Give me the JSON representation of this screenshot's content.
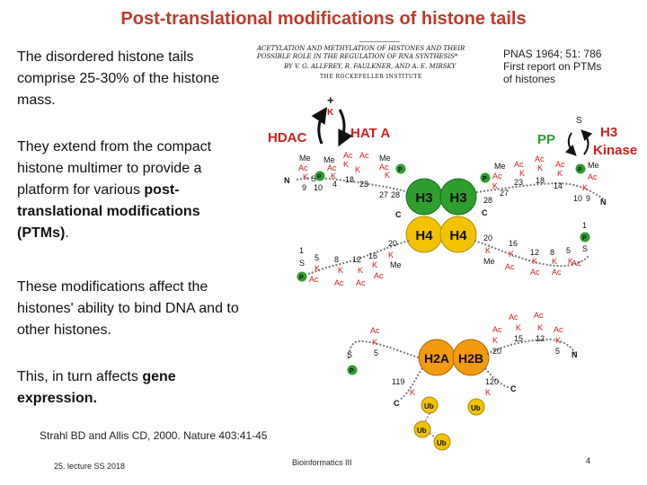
{
  "slide": {
    "title": "Post-translational modifications of histone tails",
    "paragraphs": {
      "p1": "The disordered histone tails comprise 25-30% of the histone mass.",
      "p2_a": "They extend from the compact histone multimer to provide a platform for various ",
      "p2_b": "post-translational modifications (PTMs)",
      "p2_c": ".",
      "p3": "These modifications affect the histones' ability to bind DNA and to other histones.",
      "p4_a": "This, in turn affects ",
      "p4_b": "gene expression."
    },
    "reference_note": {
      "line1": "PNAS 1964; 51: 786",
      "line2": "First report on PTMs",
      "line3": "of histones"
    },
    "paper_snippet": {
      "title": "ACETYLATION AND METHYLATION OF HISTONES AND THEIR POSSIBLE ROLE IN THE REGULATION OF RNA SYNTHESIS*",
      "authors": "BY V. G. ALLFREY, R. FAULKNER, AND A. E. MIRSKY",
      "institute": "THE ROCKEFELLER INSTITUTE"
    },
    "citation": "Strahl BD and Allis CD, 2000. Nature 403:41-45",
    "footer": {
      "left": "25. lecture SS 2018",
      "center": "Bioinformatics III",
      "page": "4"
    }
  },
  "diagram": {
    "enzymes": {
      "hdac": "HDAC",
      "hat": "HAT A",
      "pp": "PP",
      "h3_kinase_1": "H3",
      "h3_kinase_2": "Kinase"
    },
    "cores": {
      "h3_left": "H3",
      "h3_right": "H3",
      "h4_left": "H4",
      "h4_right": "H4",
      "h2a": "H2A",
      "h2b": "H2B"
    },
    "mods": {
      "me": "Me",
      "ac": "Ac",
      "p": "P",
      "ub": "Ub",
      "k": "K",
      "s": "S",
      "n": "N",
      "c": "C",
      "plus": "+"
    },
    "residues": {
      "h3l": [
        "9",
        "10",
        "4",
        "18",
        "23",
        "27",
        "28"
      ],
      "h3r": [
        "28",
        "27",
        "23",
        "18",
        "14",
        "10",
        "9"
      ],
      "h4l": [
        "1",
        "5",
        "8",
        "12",
        "16",
        "20"
      ],
      "h4r": [
        "20",
        "16",
        "12",
        "8",
        "5",
        "1"
      ],
      "h2a": [
        "5",
        "119"
      ],
      "h2b": [
        "15",
        "12",
        "20",
        "5",
        "120"
      ]
    },
    "colors": {
      "green_core": "#2e9e2e",
      "yellow_core": "#f2c200",
      "orange_core": "#f39a0f",
      "ac_red": "#d02020",
      "me_black": "#111111",
      "p_green": "#2e9e2e",
      "ub_yellow": "#f2c200",
      "enzyme_red": "#d02020",
      "pp_green": "#2e9e2e",
      "title_red": "#c0392b"
    }
  }
}
